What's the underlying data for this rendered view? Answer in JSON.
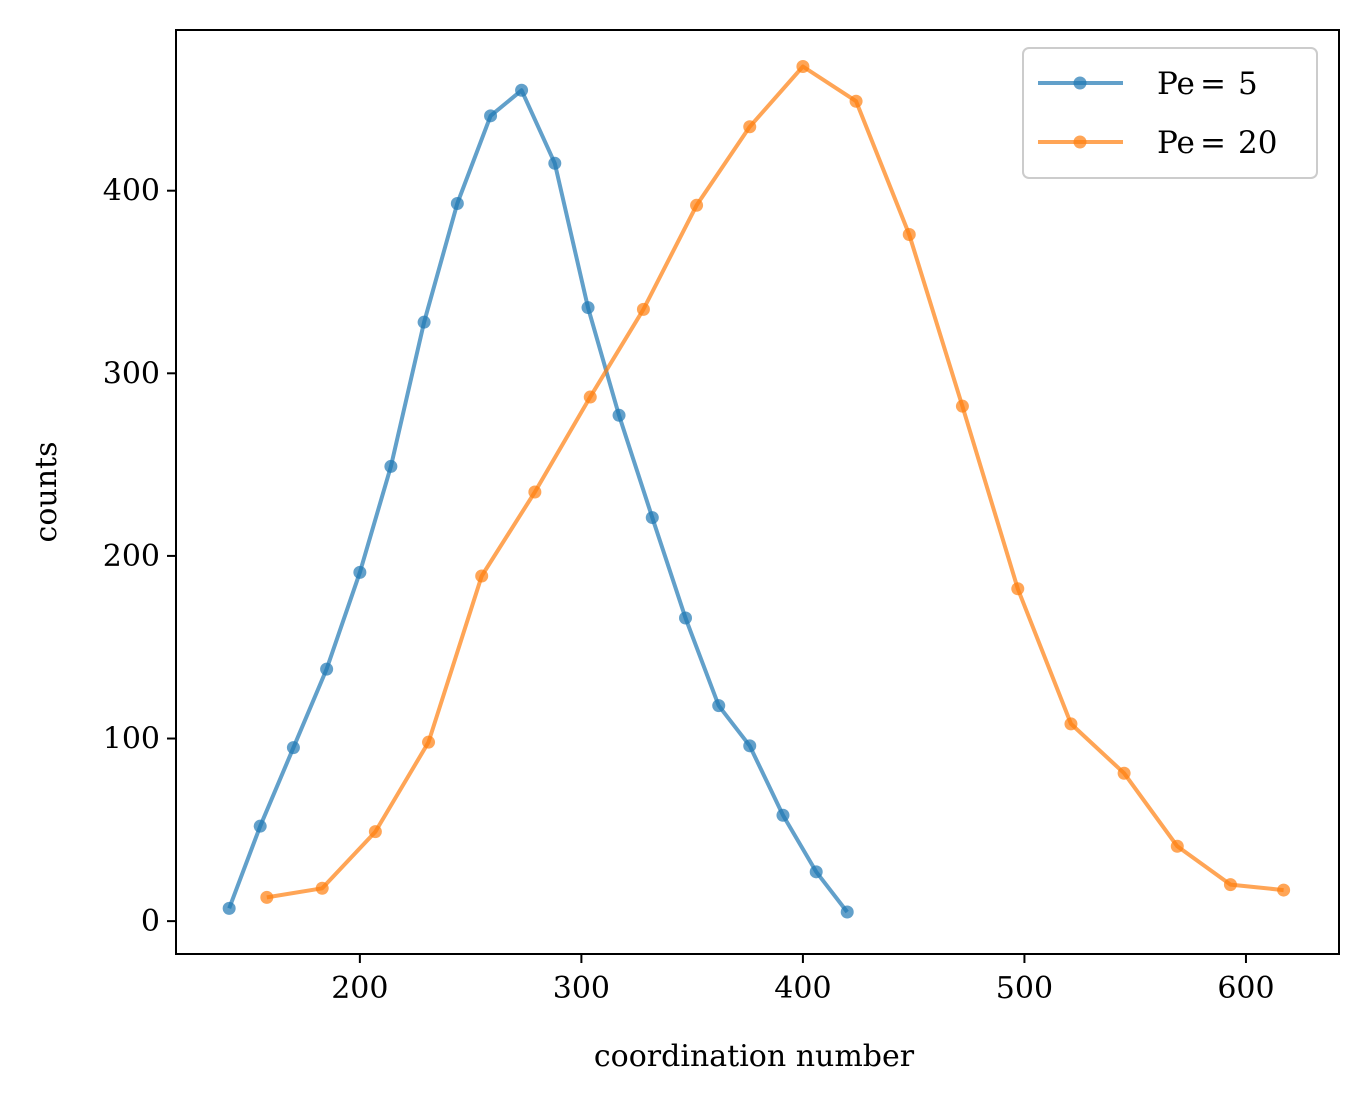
{
  "chart_data": {
    "type": "line",
    "title": "",
    "xlabel": "coordination number",
    "ylabel": "counts",
    "xlim": [
      117,
      642
    ],
    "ylim": [
      -18,
      488
    ],
    "xticks": [
      200,
      300,
      400,
      500,
      600
    ],
    "yticks": [
      0,
      100,
      200,
      300,
      400
    ],
    "grid": false,
    "legend_position": "top-right",
    "series": [
      {
        "name": "Pe = 5",
        "label_left": "Pe",
        "label_right": "5",
        "color": "#1f77b4",
        "x": [
          141,
          155,
          170,
          185,
          200,
          214,
          229,
          244,
          259,
          273,
          288,
          303,
          317,
          332,
          347,
          362,
          376,
          391,
          406,
          420
        ],
        "y": [
          7,
          52,
          95,
          138,
          191,
          249,
          328,
          393,
          441,
          455,
          415,
          336,
          277,
          221,
          166,
          118,
          96,
          58,
          27,
          5
        ]
      },
      {
        "name": "Pe = 20",
        "label_left": "Pe",
        "label_right": "20",
        "color": "#ff7f0e",
        "x": [
          158,
          183,
          207,
          231,
          255,
          279,
          304,
          328,
          352,
          376,
          400,
          424,
          448,
          472,
          497,
          521,
          545,
          569,
          593,
          617
        ],
        "y": [
          13,
          18,
          49,
          98,
          189,
          235,
          287,
          335,
          392,
          435,
          468,
          449,
          376,
          282,
          182,
          108,
          81,
          41,
          20,
          17
        ]
      }
    ]
  },
  "legend": {
    "equals_sign": "="
  }
}
